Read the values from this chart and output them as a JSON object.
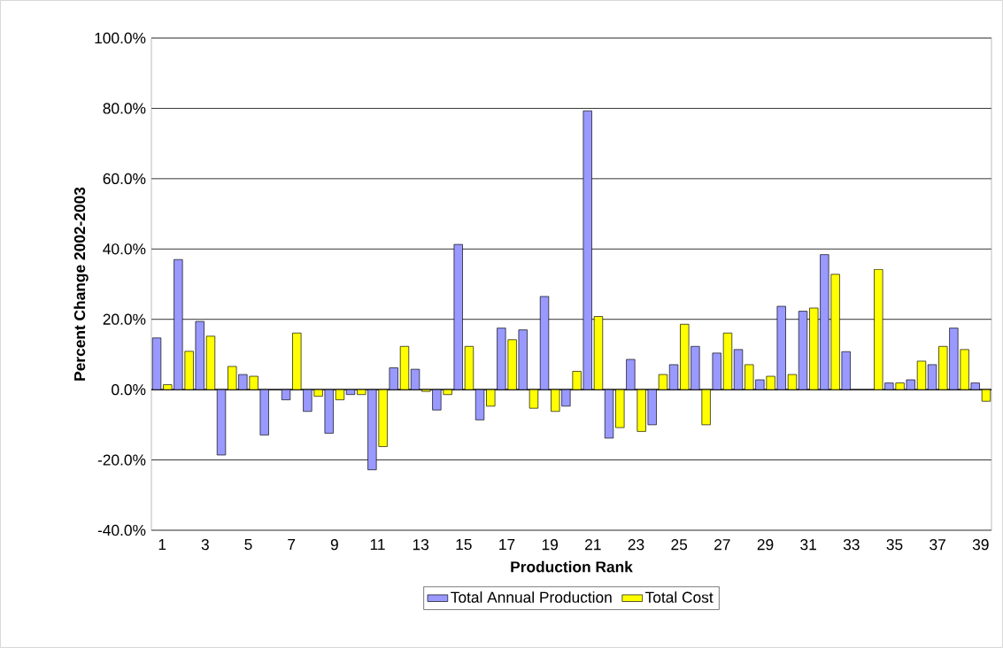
{
  "chart_data": {
    "type": "bar",
    "xlabel": "Production Rank",
    "ylabel": "Percent Change 2002-2003",
    "categories": [
      "1",
      null,
      "3",
      null,
      "5",
      null,
      "7",
      null,
      "9",
      null,
      "11",
      null,
      "13",
      null,
      "15",
      null,
      "17",
      null,
      "19",
      null,
      "21",
      null,
      "23",
      null,
      "25",
      null,
      "27",
      null,
      "29",
      null,
      "31",
      null,
      "33",
      null,
      "35",
      null,
      "37",
      null,
      "39"
    ],
    "series": [
      {
        "name": "Total Annual Production",
        "color": "#9999ff",
        "values": [
          14.7,
          37.0,
          19.4,
          -18.6,
          4.3,
          -12.9,
          -2.9,
          -6.2,
          -12.4,
          -1.4,
          -22.8,
          6.2,
          5.8,
          -5.8,
          41.3,
          -8.6,
          17.5,
          17.0,
          26.5,
          -4.7,
          79.3,
          -13.8,
          8.6,
          -10.0,
          7.1,
          12.3,
          10.4,
          11.4,
          2.8,
          23.7,
          22.3,
          38.4,
          10.8,
          null,
          1.9,
          2.8,
          7.1,
          17.5,
          1.9
        ]
      },
      {
        "name": "Total Cost",
        "color": "#ffff00",
        "values": [
          1.4,
          10.9,
          15.2,
          6.6,
          3.8,
          null,
          16.1,
          -1.9,
          -2.9,
          -1.4,
          -16.2,
          12.3,
          -0.5,
          -1.4,
          12.3,
          -4.7,
          14.2,
          -5.3,
          -6.2,
          5.2,
          20.8,
          -10.8,
          -11.9,
          4.3,
          18.6,
          -10.0,
          16.1,
          7.1,
          3.8,
          4.3,
          23.2,
          32.8,
          null,
          34.2,
          1.9,
          8.1,
          12.3,
          11.4,
          -3.3
        ]
      }
    ],
    "ylim": [
      -40,
      100
    ],
    "yticks": [
      {
        "value": -40,
        "label": "-40.0%"
      },
      {
        "value": -20,
        "label": "-20.0%"
      },
      {
        "value": 0,
        "label": "0.0%"
      },
      {
        "value": 20,
        "label": "20.0%"
      },
      {
        "value": 40,
        "label": "40.0%"
      },
      {
        "value": 60,
        "label": "60.0%"
      },
      {
        "value": 80,
        "label": "80.0%"
      },
      {
        "value": 100,
        "label": "100.0%"
      }
    ],
    "grid": "y",
    "legend": "bottom"
  }
}
